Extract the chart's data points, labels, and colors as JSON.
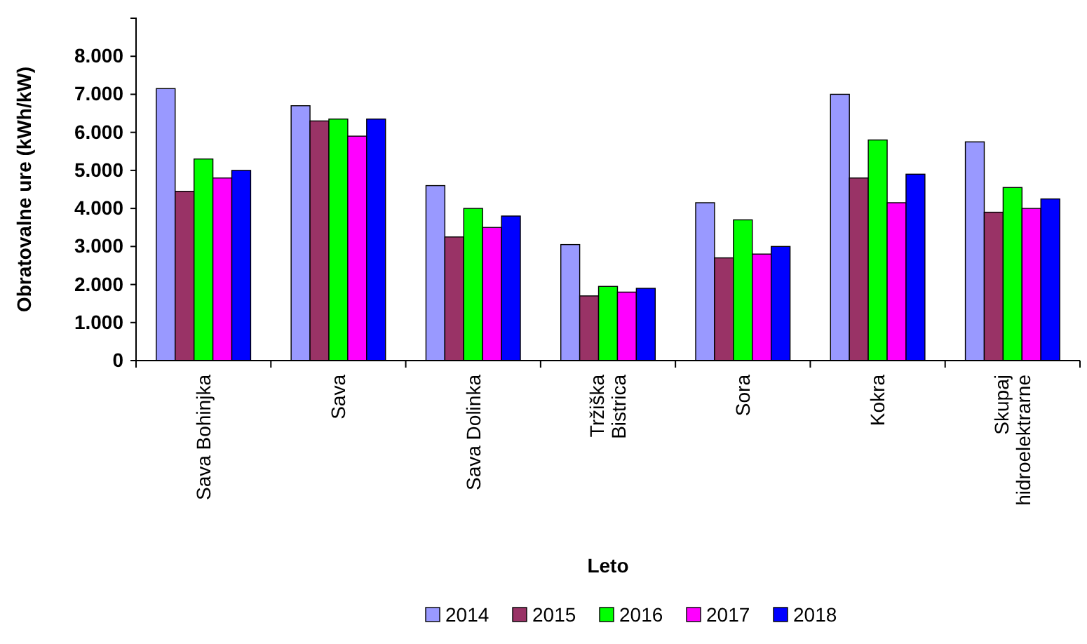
{
  "chart_data": {
    "type": "bar",
    "xlabel": "Leto",
    "ylabel": "Obratovalne ure (kWh/kW)",
    "categories": [
      "Sava Bohinjka",
      "Sava",
      "Sava Dolinka",
      "Tržiška\nBistrica",
      "Sora",
      "Kokra",
      "Skupaj\nhidroelektrarne"
    ],
    "series": [
      {
        "name": "2014",
        "color": "#9999ff",
        "values": [
          7150,
          6700,
          4600,
          3050,
          4150,
          7000,
          5750
        ]
      },
      {
        "name": "2015",
        "color": "#993366",
        "values": [
          4450,
          6300,
          3250,
          1700,
          2700,
          4800,
          3900
        ]
      },
      {
        "name": "2016",
        "color": "#00ff00",
        "values": [
          5300,
          6350,
          4000,
          1950,
          3700,
          5800,
          4550
        ]
      },
      {
        "name": "2017",
        "color": "#ff00ff",
        "values": [
          4800,
          5900,
          3500,
          1800,
          2800,
          4150,
          4000
        ]
      },
      {
        "name": "2018",
        "color": "#0000ff",
        "values": [
          5000,
          6350,
          3800,
          1900,
          3000,
          4900,
          4250
        ]
      }
    ],
    "ylim": [
      0,
      9000
    ],
    "yticks": [
      {
        "value": 0,
        "label": "0"
      },
      {
        "value": 1000,
        "label": "1.000"
      },
      {
        "value": 2000,
        "label": "2.000"
      },
      {
        "value": 3000,
        "label": "3.000"
      },
      {
        "value": 4000,
        "label": "4.000"
      },
      {
        "value": 5000,
        "label": "5.000"
      },
      {
        "value": 6000,
        "label": "6.000"
      },
      {
        "value": 7000,
        "label": "7.000"
      },
      {
        "value": 8000,
        "label": "8.000"
      }
    ],
    "grid": false,
    "legend": "bottom"
  }
}
